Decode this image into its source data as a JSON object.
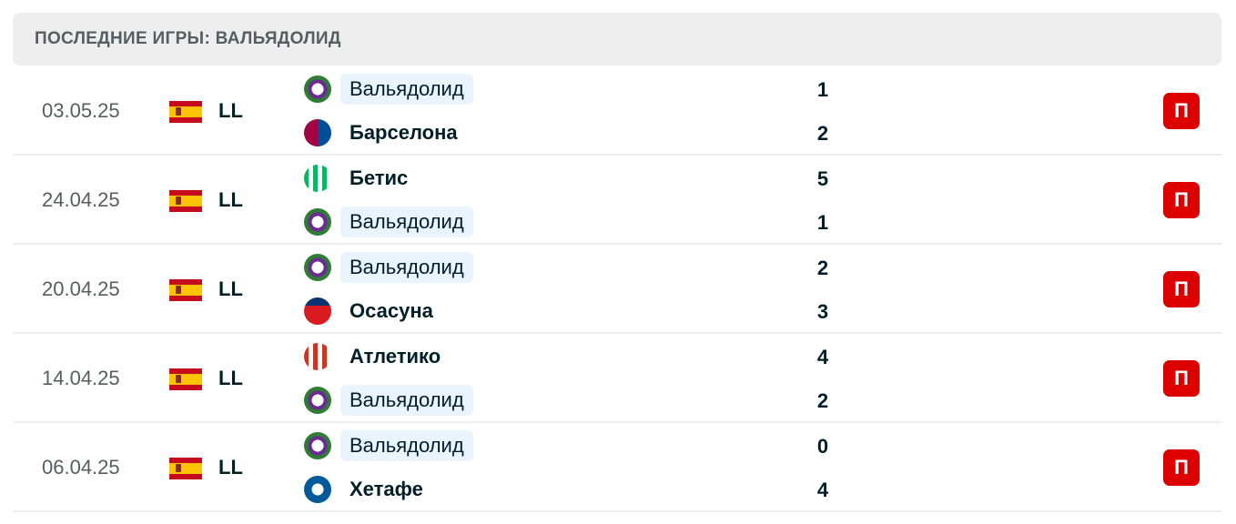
{
  "header": {
    "title": "ПОСЛЕДНИЕ ИГРЫ: ВАЛЬЯДОЛИД"
  },
  "colors": {
    "loss": "#dc0000",
    "highlight": "#eaf4fe"
  },
  "matches": [
    {
      "date": "03.05.25",
      "league": "LL",
      "country_flag": "spain-flag",
      "home": {
        "name": "Вальядолид",
        "score": "1",
        "highlight": true,
        "logo": "valladolid-logo"
      },
      "away": {
        "name": "Барселона",
        "score": "2",
        "highlight": false,
        "logo": "barcelona-logo"
      },
      "result": "П"
    },
    {
      "date": "24.04.25",
      "league": "LL",
      "country_flag": "spain-flag",
      "home": {
        "name": "Бетис",
        "score": "5",
        "highlight": false,
        "logo": "betis-logo"
      },
      "away": {
        "name": "Вальядолид",
        "score": "1",
        "highlight": true,
        "logo": "valladolid-logo"
      },
      "result": "П"
    },
    {
      "date": "20.04.25",
      "league": "LL",
      "country_flag": "spain-flag",
      "home": {
        "name": "Вальядолид",
        "score": "2",
        "highlight": true,
        "logo": "valladolid-logo"
      },
      "away": {
        "name": "Осасуна",
        "score": "3",
        "highlight": false,
        "logo": "osasuna-logo"
      },
      "result": "П"
    },
    {
      "date": "14.04.25",
      "league": "LL",
      "country_flag": "spain-flag",
      "home": {
        "name": "Атлетико",
        "score": "4",
        "highlight": false,
        "logo": "atletico-logo"
      },
      "away": {
        "name": "Вальядолид",
        "score": "2",
        "highlight": true,
        "logo": "valladolid-logo"
      },
      "result": "П"
    },
    {
      "date": "06.04.25",
      "league": "LL",
      "country_flag": "spain-flag",
      "home": {
        "name": "Вальядолид",
        "score": "0",
        "highlight": true,
        "logo": "valladolid-logo"
      },
      "away": {
        "name": "Хетафе",
        "score": "4",
        "highlight": false,
        "logo": "getafe-logo"
      },
      "result": "П"
    }
  ]
}
